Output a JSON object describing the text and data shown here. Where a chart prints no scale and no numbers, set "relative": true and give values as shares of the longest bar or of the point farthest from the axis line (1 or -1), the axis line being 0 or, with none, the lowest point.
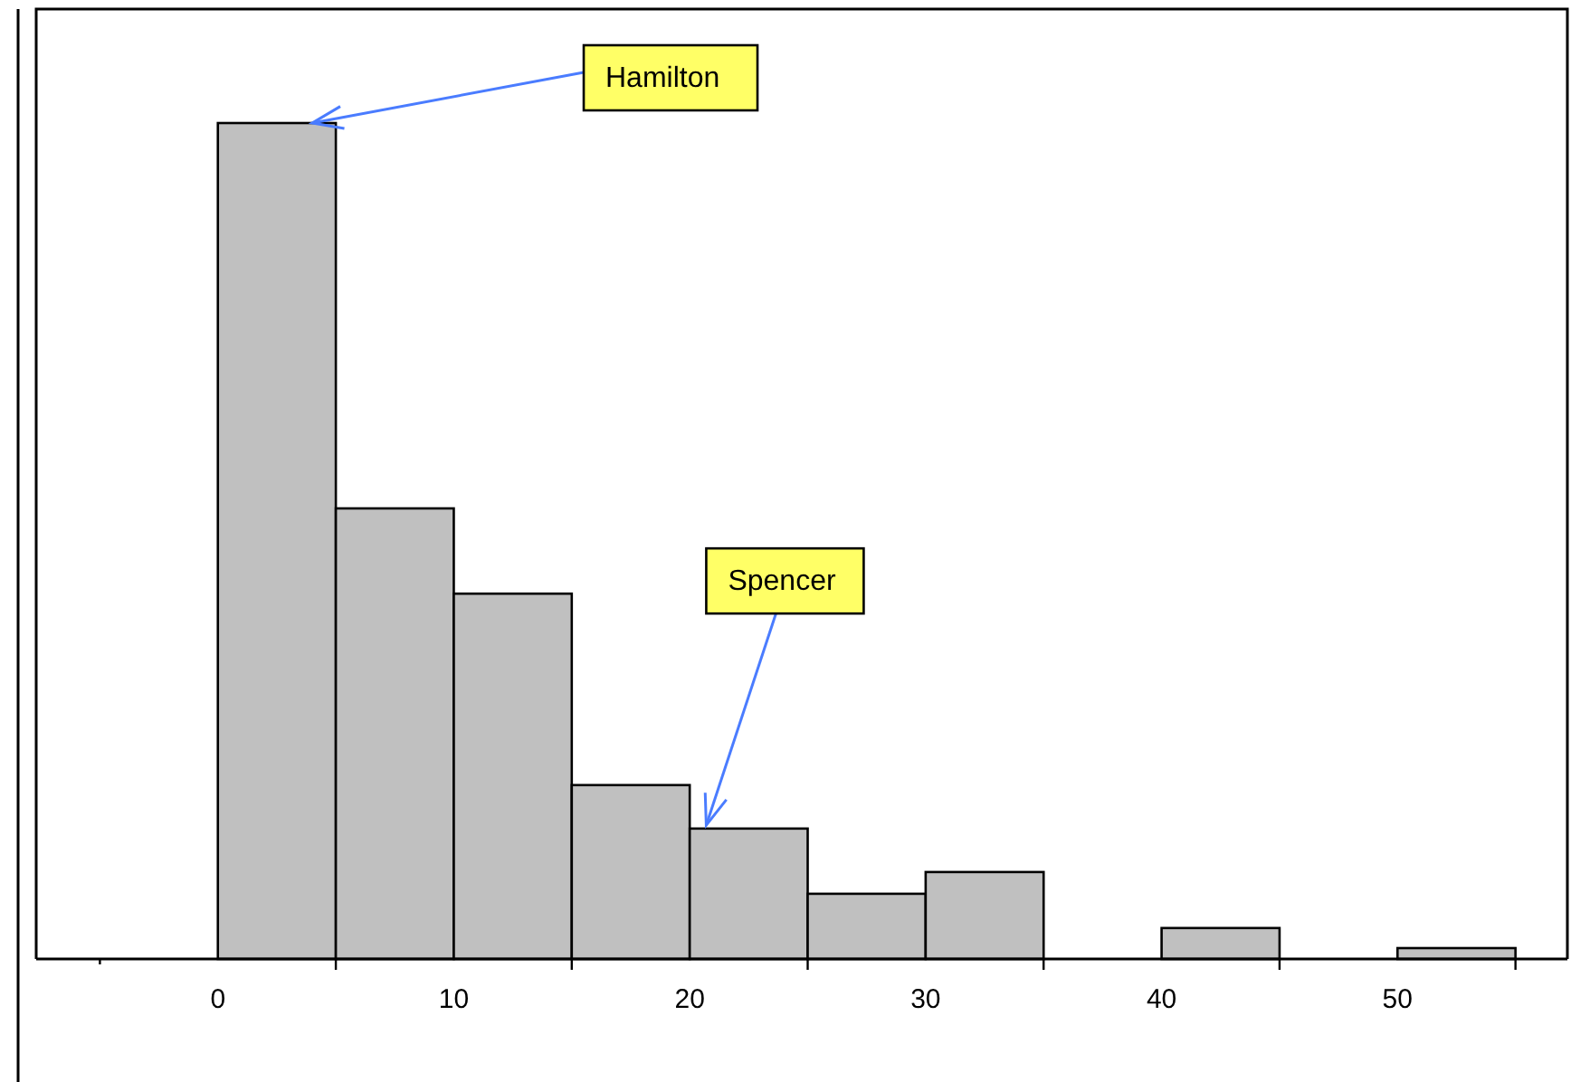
{
  "chart_data": {
    "type": "bar",
    "relative": true,
    "color": "#c0c0c0",
    "x": [
      2.5,
      7.5,
      12.5,
      17.5,
      22.5,
      27.5,
      32.5,
      37.5,
      42.5,
      47.5,
      52.5
    ],
    "values": [
      1,
      0.539,
      0.437,
      0.208,
      0.156,
      0.078,
      0.104,
      0,
      0.037,
      0,
      0.013
    ],
    "xlim": [
      -7.7,
      57.2
    ],
    "xticks": [
      {
        "value": -5,
        "label": null
      },
      0,
      {
        "value": 5,
        "label": null
      },
      10,
      {
        "value": 15,
        "label": null
      },
      20,
      {
        "value": 25,
        "label": null
      },
      30,
      {
        "value": 35,
        "label": null
      },
      40,
      {
        "value": 45,
        "label": null
      },
      50,
      {
        "value": 55,
        "label": null
      }
    ],
    "annotations": [
      {
        "text": "Hamilton",
        "x": 4,
        "y": 1
      },
      {
        "text": "Spencer",
        "x": 20.7,
        "y": 0.16
      }
    ]
  }
}
